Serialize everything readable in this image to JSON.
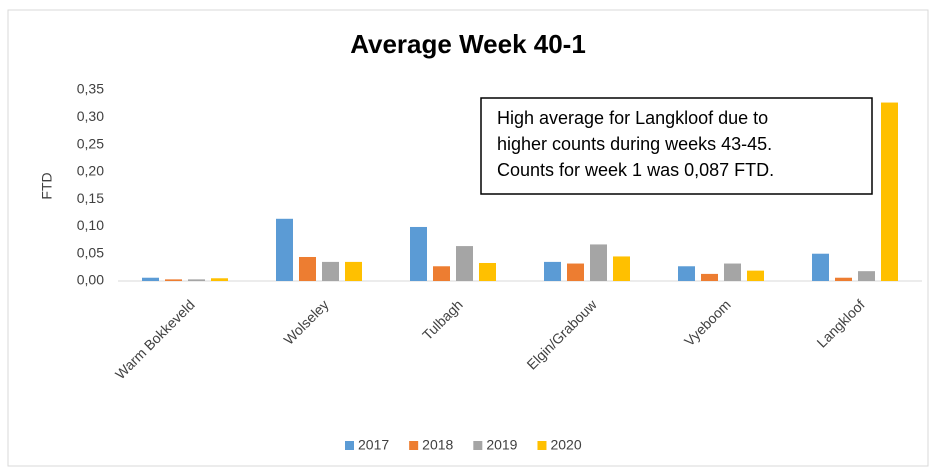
{
  "chart_data": {
    "type": "bar",
    "title": "Average Week 40-1",
    "y_label": "FTD",
    "categories": [
      "Warm Bokkeveld",
      "Wolseley",
      "Tulbagh",
      "Elgin/Grabouw",
      "Vyeboom",
      "Langkloof"
    ],
    "series": [
      {
        "name": "2017",
        "color": "#5b9bd5",
        "values": [
          0.006,
          0.114,
          0.099,
          0.035,
          0.027,
          0.05
        ]
      },
      {
        "name": "2018",
        "color": "#ed7d31",
        "values": [
          0.003,
          0.044,
          0.027,
          0.032,
          0.013,
          0.006
        ]
      },
      {
        "name": "2019",
        "color": "#a5a5a5",
        "values": [
          0.003,
          0.035,
          0.064,
          0.067,
          0.032,
          0.018
        ]
      },
      {
        "name": "2020",
        "color": "#ffc000",
        "values": [
          0.005,
          0.035,
          0.033,
          0.045,
          0.019,
          0.327
        ]
      }
    ],
    "ylim": [
      0,
      0.35
    ],
    "yticks": [
      {
        "value": 0,
        "label": "0,00"
      },
      {
        "value": 0.05,
        "label": "0,05"
      },
      {
        "value": 0.1,
        "label": "0,10"
      },
      {
        "value": 0.15,
        "label": "0,15"
      },
      {
        "value": 0.2,
        "label": "0,20"
      },
      {
        "value": 0.25,
        "label": "0,25"
      },
      {
        "value": 0.3,
        "label": "0,30"
      },
      {
        "value": 0.35,
        "label": "0,35"
      }
    ],
    "grid": false,
    "legend": "bottom",
    "annotation": [
      "High average for Langkloof due to",
      "higher counts during weeks 43-45.",
      "Counts for week 1 was 0,087 FTD."
    ]
  }
}
